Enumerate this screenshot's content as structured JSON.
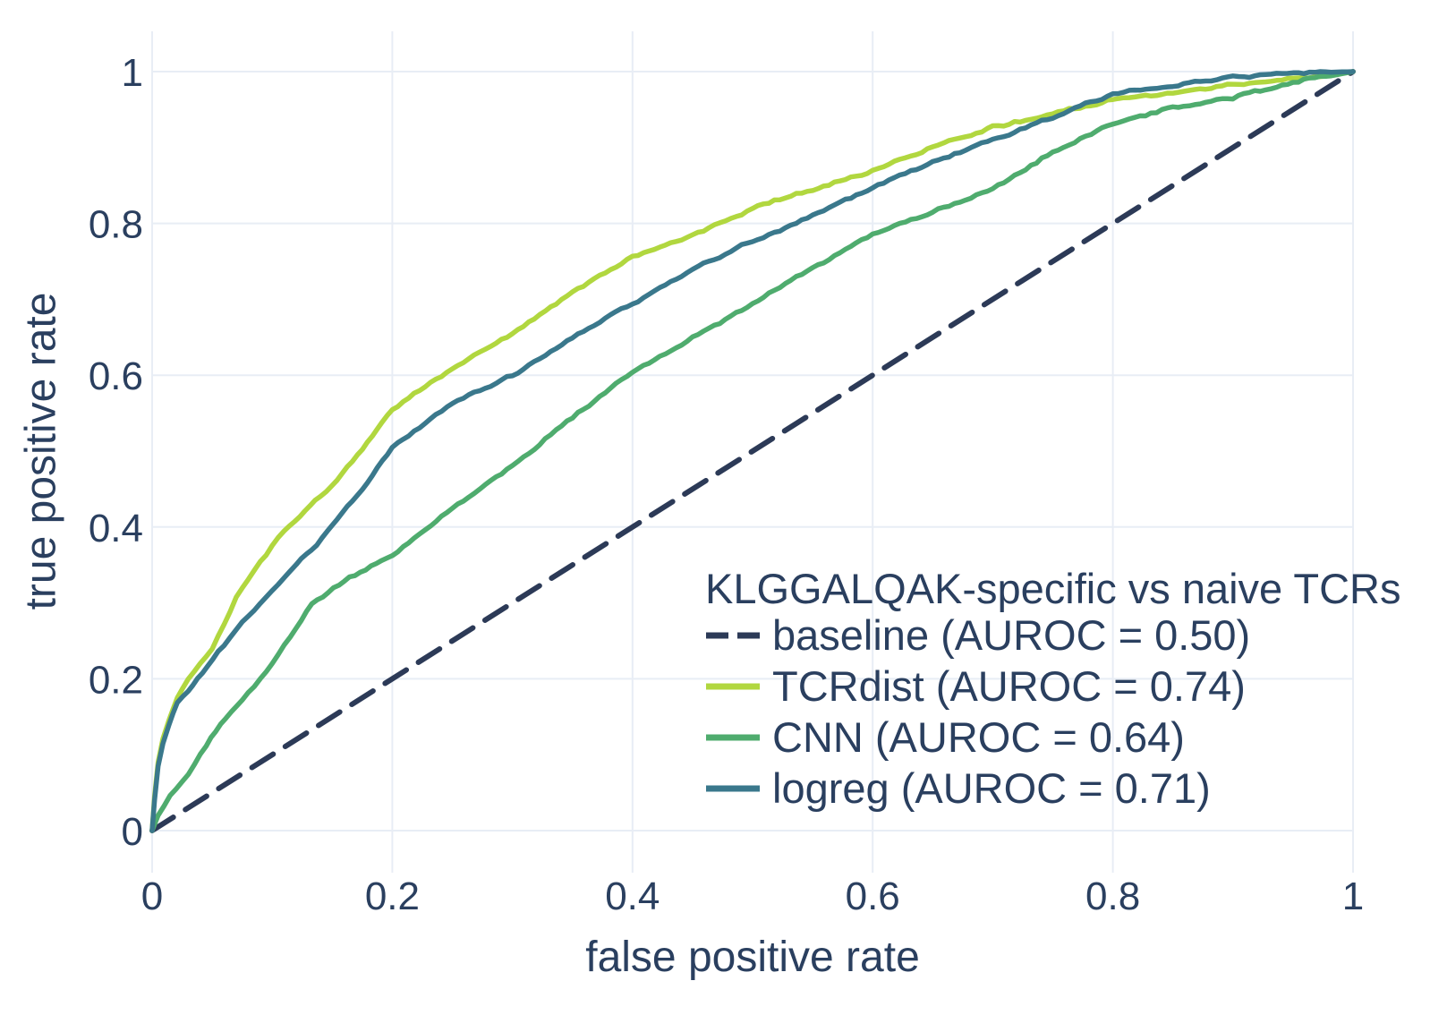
{
  "chart_data": {
    "type": "line",
    "subtype": "roc-curves",
    "title": "",
    "xlabel": "false positive rate",
    "ylabel": "true positive rate",
    "xlim": [
      0,
      1
    ],
    "ylim": [
      -0.055,
      1.055
    ],
    "grid": true,
    "background": "#ffffff",
    "grid_color": "#e8edf5",
    "text_color": "#2a3f5f",
    "x_ticks": {
      "values": [
        0,
        0.2,
        0.4,
        0.6,
        0.8,
        1
      ],
      "labels": [
        "0",
        "0.2",
        "0.4",
        "0.6",
        "0.8",
        "1"
      ]
    },
    "y_ticks": {
      "values": [
        0,
        0.2,
        0.4,
        0.6,
        0.8,
        1
      ],
      "labels": [
        "0",
        "0.2",
        "0.4",
        "0.6",
        "0.8",
        "1"
      ]
    },
    "legend_position": "inside lower-right",
    "series": [
      {
        "name": "baseline",
        "auroc": 0.5,
        "color": "#2c3a57",
        "dash": "dashed",
        "x": [
          0,
          1
        ],
        "y": [
          0,
          1
        ]
      },
      {
        "name": "TCRdist",
        "auroc": 0.74,
        "color": "#b1d73f",
        "dash": "solid",
        "x": [
          0,
          0.002,
          0.005,
          0.009,
          0.014,
          0.021,
          0.03,
          0.04,
          0.05,
          0.06,
          0.07,
          0.09,
          0.11,
          0.14,
          0.15,
          0.175,
          0.2,
          0.25,
          0.3,
          0.35,
          0.4,
          0.45,
          0.5,
          0.55,
          0.6,
          0.65,
          0.7,
          0.75,
          0.8,
          0.85,
          0.9,
          0.95,
          1
        ],
        "y": [
          0,
          0.045,
          0.09,
          0.12,
          0.145,
          0.175,
          0.2,
          0.22,
          0.24,
          0.27,
          0.305,
          0.355,
          0.395,
          0.44,
          0.455,
          0.505,
          0.555,
          0.61,
          0.655,
          0.71,
          0.755,
          0.785,
          0.82,
          0.845,
          0.87,
          0.9,
          0.927,
          0.944,
          0.963,
          0.972,
          0.982,
          0.991,
          1
        ]
      },
      {
        "name": "CNN",
        "auroc": 0.64,
        "color": "#4fac6e",
        "dash": "solid",
        "x": [
          0,
          0.005,
          0.015,
          0.03,
          0.045,
          0.057,
          0.075,
          0.095,
          0.115,
          0.133,
          0.16,
          0.2,
          0.25,
          0.3,
          0.35,
          0.4,
          0.45,
          0.5,
          0.55,
          0.6,
          0.65,
          0.7,
          0.75,
          0.8,
          0.85,
          0.9,
          0.95,
          1
        ],
        "y": [
          0,
          0.02,
          0.045,
          0.075,
          0.112,
          0.14,
          0.172,
          0.21,
          0.255,
          0.3,
          0.33,
          0.365,
          0.425,
          0.48,
          0.545,
          0.607,
          0.65,
          0.693,
          0.74,
          0.786,
          0.815,
          0.845,
          0.895,
          0.932,
          0.953,
          0.967,
          0.985,
          1
        ]
      },
      {
        "name": "logreg",
        "auroc": 0.71,
        "color": "#3a788c",
        "dash": "solid",
        "x": [
          0,
          0.002,
          0.005,
          0.009,
          0.014,
          0.021,
          0.03,
          0.042,
          0.055,
          0.07,
          0.09,
          0.1,
          0.12,
          0.15,
          0.175,
          0.2,
          0.25,
          0.3,
          0.35,
          0.4,
          0.45,
          0.5,
          0.55,
          0.6,
          0.65,
          0.7,
          0.75,
          0.8,
          0.85,
          0.9,
          0.95,
          1
        ],
        "y": [
          0,
          0.04,
          0.085,
          0.115,
          0.14,
          0.17,
          0.185,
          0.21,
          0.235,
          0.265,
          0.3,
          0.316,
          0.35,
          0.4,
          0.45,
          0.505,
          0.565,
          0.6,
          0.65,
          0.693,
          0.74,
          0.776,
          0.81,
          0.847,
          0.88,
          0.912,
          0.94,
          0.971,
          0.982,
          0.993,
          0.998,
          1
        ]
      }
    ]
  },
  "axes": {
    "x_label": "false positive rate",
    "y_label": "true positive rate"
  },
  "legend": {
    "title": "KLGGALQAK-specific vs naive TCRs",
    "entries": [
      {
        "label": "baseline (AUROC = 0.50)",
        "color": "#2c3a57",
        "dashed": true
      },
      {
        "label": "TCRdist (AUROC = 0.74)",
        "color": "#b1d73f",
        "dashed": false
      },
      {
        "label": "CNN (AUROC = 0.64)",
        "color": "#4fac6e",
        "dashed": false
      },
      {
        "label": "logreg (AUROC = 0.71)",
        "color": "#3a788c",
        "dashed": false
      }
    ]
  }
}
